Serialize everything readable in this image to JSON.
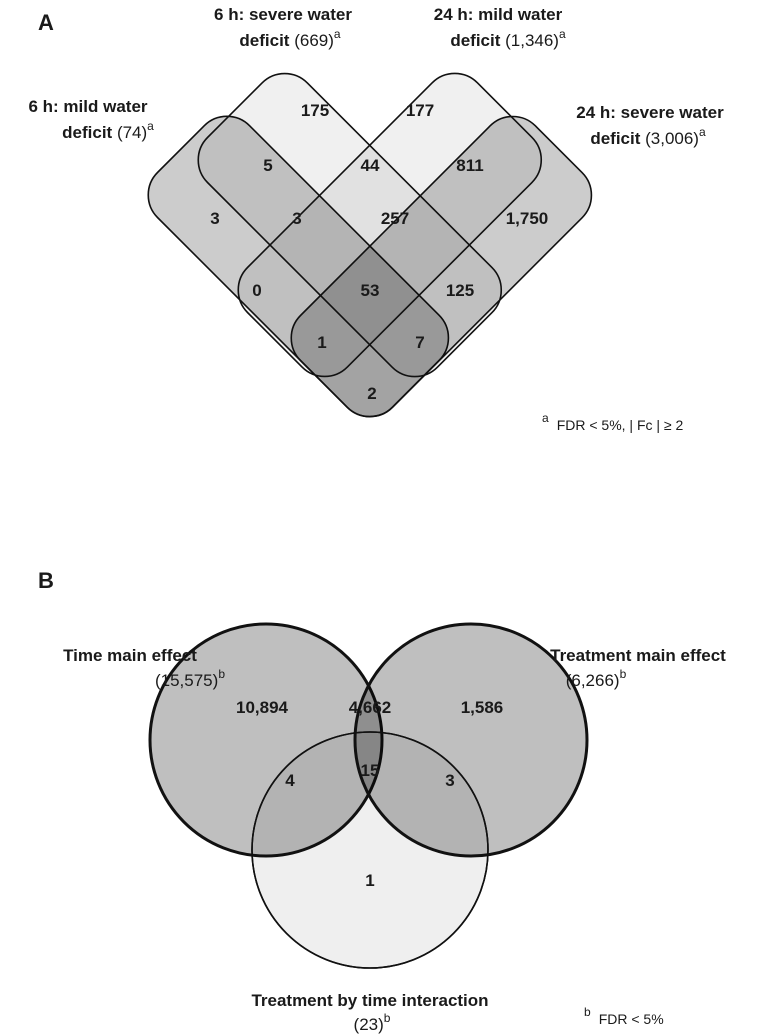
{
  "panel_a": {
    "label": "A",
    "sets": [
      {
        "line1": "6 h: mild water",
        "line2": "deficit",
        "count": "(74)",
        "note": "a"
      },
      {
        "line1": "6 h: severe water",
        "line2": "deficit",
        "count": "(669)",
        "note": "a"
      },
      {
        "line1": "24 h: mild water",
        "line2": "deficit",
        "count": "(1,346)",
        "note": "a"
      },
      {
        "line1": "24 h: severe water",
        "line2": "deficit",
        "count": "(3,006)",
        "note": "a"
      }
    ],
    "regions": [
      "175",
      "177",
      "5",
      "44",
      "811",
      "3",
      "3",
      "257",
      "1,750",
      "0",
      "53",
      "125",
      "1",
      "7",
      "2"
    ],
    "footnote": {
      "mark": "a",
      "text": "FDR < 5%, | Fc | ≥ 2"
    }
  },
  "panel_b": {
    "label": "B",
    "sets": [
      {
        "name": "Time main effect",
        "count": "(15,575)",
        "note": "b"
      },
      {
        "name": "Treatment main effect",
        "count": "(6,266)",
        "note": "b"
      },
      {
        "name": "Treatment by time interaction",
        "count": "(23)",
        "note": "b"
      }
    ],
    "regions": [
      "10,894",
      "4,662",
      "1,586",
      "15",
      "4",
      "3",
      "1"
    ],
    "footnote": {
      "mark": "b",
      "text": "FDR < 5%"
    }
  }
}
